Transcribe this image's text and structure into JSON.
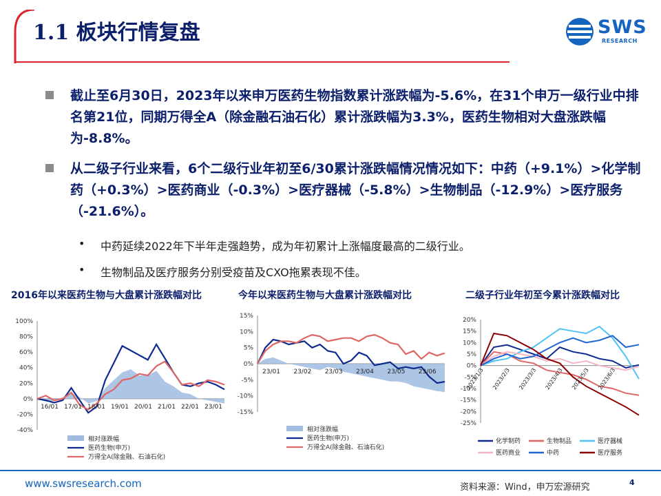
{
  "header": {
    "title": "1.1 板块行情复盘",
    "logo_main": "SWS",
    "logo_sub": "RESEARCH"
  },
  "bullets": [
    {
      "text": "截止至6月30日，2023年以来申万医药生物指数累计涨跌幅为-5.6%，在31个申万一级行业中排名第21位，同期万得全A（除金融石油石化）累计涨跌幅为3.3%，医药生物相对大盘涨跌幅为-8.8%。"
    },
    {
      "text": "从二级子行业来看，6个二级行业年初至6/30累计涨跌幅情况情况如下：中药（+9.1%）>化学制药（+0.3%）>医药商业（-0.3%）>医疗器械（-5.8%）>生物制品（-12.9%）>医疗服务（-21.6%）。"
    }
  ],
  "sub_bullets": [
    {
      "dot": "•",
      "text": "中药延续2022年下半年走强趋势，成为年初累计上涨幅度最高的二级行业。"
    },
    {
      "dot": "•",
      "text": "生物制品及医疗服务分别受疫苗及CXO拖累表现不佳。"
    }
  ],
  "footer": {
    "url": "www.swsresearch.com",
    "source": "资料来源：Wind，申万宏源研究",
    "page": "4"
  },
  "colors": {
    "navy": "#0b1f6b",
    "index_line": "#0d2a8f",
    "market_line": "#e06666",
    "relative_area": "#9fbce0",
    "brand_blue": "#1565c0",
    "title_red": "#d9262c"
  },
  "chart_data": [
    {
      "type": "line",
      "title": "2016年以来医药生物与大盘累计涨跌幅对比",
      "y_ticks": [
        "100%",
        "80%",
        "60%",
        "40%",
        "20%",
        "0%",
        "-20%",
        "-40%"
      ],
      "x_ticks": [
        "16/01",
        "17/01",
        "18/01",
        "19/01",
        "20/01",
        "21/01",
        "22/01",
        "23/01"
      ],
      "ylim": [
        -40,
        100
      ],
      "x": [
        "16/01",
        "16/07",
        "17/01",
        "17/07",
        "18/01",
        "18/07",
        "19/01",
        "19/07",
        "20/01",
        "20/04",
        "20/07",
        "20/10",
        "21/01",
        "21/04",
        "21/07",
        "21/10",
        "22/01",
        "22/04",
        "22/07",
        "22/10",
        "23/01",
        "23/04",
        "23/06"
      ],
      "series": [
        {
          "name": "相对涨跌幅",
          "style": "area",
          "values": [
            0,
            -4,
            -3,
            2,
            8,
            2,
            -6,
            -3,
            14,
            24,
            34,
            38,
            30,
            30,
            36,
            22,
            16,
            8,
            6,
            0,
            -2,
            -4,
            -6
          ]
        },
        {
          "name": "医药生物(申万)",
          "style": "line",
          "values": [
            0,
            -2,
            -5,
            -2,
            14,
            -2,
            -18,
            -10,
            24,
            46,
            68,
            62,
            56,
            50,
            70,
            52,
            34,
            18,
            16,
            20,
            22,
            18,
            12
          ]
        },
        {
          "name": "万得全A(除金融、石油石化)",
          "style": "line",
          "values": [
            0,
            4,
            -2,
            0,
            8,
            -8,
            -14,
            -6,
            6,
            12,
            24,
            26,
            32,
            30,
            42,
            48,
            34,
            18,
            20,
            16,
            24,
            22,
            18
          ]
        }
      ]
    },
    {
      "type": "line",
      "title": "今年以来医药生物与大盘累计涨跌幅对比",
      "y_ticks": [
        "15%",
        "10%",
        "5%",
        "0%",
        "-5%",
        "-10%",
        "-15%"
      ],
      "x_ticks": [
        "23/01",
        "23/02",
        "23/03",
        "23/04",
        "23/05",
        "23/06"
      ],
      "ylim": [
        -15,
        15
      ],
      "x": [
        "23/01/03",
        "23/01/10",
        "23/01/17",
        "23/01/31",
        "23/02/07",
        "23/02/14",
        "23/02/21",
        "23/02/28",
        "23/03/07",
        "23/03/14",
        "23/03/21",
        "23/03/28",
        "23/04/04",
        "23/04/11",
        "23/04/18",
        "23/04/25",
        "23/05/05",
        "23/05/12",
        "23/05/19",
        "23/05/26",
        "23/06/02",
        "23/06/09",
        "23/06/16",
        "23/06/26",
        "23/06/30"
      ],
      "series": [
        {
          "name": "相对涨跌幅",
          "style": "area",
          "values": [
            0,
            1.5,
            2,
            1,
            0,
            -0.5,
            -1,
            -1.5,
            -2,
            -1,
            -1.5,
            -2.5,
            -3,
            -3.5,
            -4,
            -4.5,
            -5,
            -5.5,
            -5.5,
            -6,
            -7,
            -7.5,
            -8,
            -8.5,
            -8.8
          ]
        },
        {
          "name": "医药生物(申万)",
          "style": "line",
          "values": [
            0,
            5,
            7.5,
            7,
            6,
            6.5,
            7,
            5,
            6,
            4,
            3.5,
            0,
            1,
            3.5,
            2.5,
            -0.5,
            0,
            0.5,
            -1.5,
            -1,
            -1.5,
            -1,
            -4,
            -6,
            -5.6
          ]
        },
        {
          "name": "万得全A(除金融、石油石化)",
          "style": "line",
          "values": [
            0,
            4,
            6,
            7,
            7,
            6.5,
            8,
            9,
            8.5,
            7,
            7.5,
            8,
            8,
            7,
            8.5,
            9,
            8,
            6.5,
            6,
            3,
            4,
            1.5,
            3.5,
            2.5,
            3.3
          ]
        }
      ]
    },
    {
      "type": "line",
      "title": "二级子行业年初至今累计涨跌幅对比",
      "y_ticks": [
        "20%",
        "15%",
        "10%",
        "5%",
        "0%",
        "-5%",
        "-10%",
        "-15%",
        "-20%",
        "-25%"
      ],
      "x_ticks": [
        "2023/1/3",
        "2023/2/3",
        "2023/3/3",
        "2023/4/3",
        "2023/5/3",
        "2023/6/3"
      ],
      "ylim": [
        -25,
        20
      ],
      "x": [
        "2023/1/3",
        "2023/1/17",
        "2023/2/1",
        "2023/2/15",
        "2023/3/1",
        "2023/3/15",
        "2023/4/3",
        "2023/4/17",
        "2023/5/4",
        "2023/5/18",
        "2023/6/1",
        "2023/6/15",
        "2023/6/30"
      ],
      "series": [
        {
          "name": "化学制药",
          "color": "#0d2a8f",
          "values": [
            0,
            8,
            9,
            7,
            5,
            3,
            8,
            6,
            5,
            3,
            2,
            -1,
            0.3
          ]
        },
        {
          "name": "生物制品",
          "color": "#e06666",
          "values": [
            0,
            6,
            5,
            2,
            1,
            -2,
            -3,
            -4,
            -6,
            -9,
            -10,
            -12,
            -12.9
          ]
        },
        {
          "name": "医疗器械",
          "color": "#4fc3f7",
          "values": [
            0,
            2,
            3,
            6,
            8,
            12,
            16,
            15,
            14,
            17,
            12,
            4,
            -5.8
          ]
        },
        {
          "name": "医药商业",
          "color": "#f4b6c2",
          "values": [
            0,
            4,
            6,
            5,
            4,
            2,
            3,
            1,
            2,
            0,
            -1,
            -2,
            -0.3
          ]
        },
        {
          "name": "中药",
          "color": "#1e66d0",
          "values": [
            0,
            3,
            5,
            3,
            4,
            7,
            10,
            12,
            10,
            11,
            13,
            8,
            9.1
          ]
        },
        {
          "name": "医疗服务",
          "color": "#8b0000",
          "values": [
            0,
            14,
            13,
            10,
            7,
            3,
            1,
            -5,
            -9,
            -12,
            -15,
            -18,
            -21.6
          ]
        }
      ]
    }
  ]
}
